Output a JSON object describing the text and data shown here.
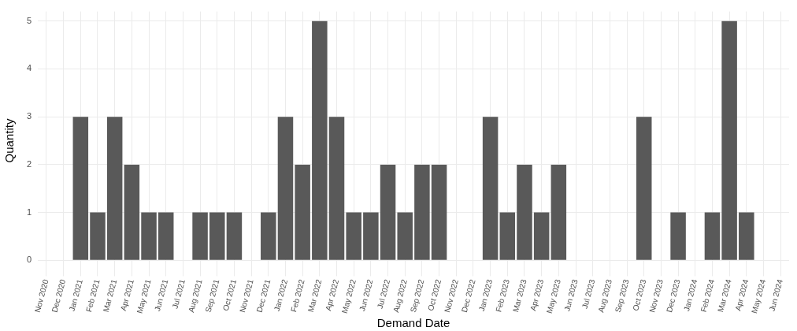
{
  "chart_data": {
    "type": "bar",
    "xlabel": "Demand Date",
    "ylabel": "Quantity",
    "categories": [
      "Nov 2020",
      "Dec 2020",
      "Jan 2021",
      "Feb 2021",
      "Mar 2021",
      "Apr 2021",
      "May 2021",
      "Jun 2021",
      "Jul 2021",
      "Aug 2021",
      "Sep 2021",
      "Oct 2021",
      "Nov 2021",
      "Dec 2021",
      "Jan 2022",
      "Feb 2022",
      "Mar 2022",
      "Apr 2022",
      "May 2022",
      "Jun 2022",
      "Jul 2022",
      "Aug 2022",
      "Sep 2022",
      "Oct 2022",
      "Nov 2022",
      "Dec 2022",
      "Jan 2023",
      "Feb 2023",
      "Mar 2023",
      "Apr 2023",
      "May 2023",
      "Jun 2023",
      "Jul 2023",
      "Aug 2023",
      "Sep 2023",
      "Oct 2023",
      "Nov 2023",
      "Dec 2023",
      "Jan 2024",
      "Feb 2024",
      "Mar 2024",
      "Apr 2024",
      "May 2024",
      "Jun 2024"
    ],
    "values": [
      null,
      null,
      3,
      1,
      3,
      2,
      1,
      1,
      null,
      1,
      1,
      1,
      null,
      1,
      3,
      2,
      5,
      3,
      1,
      1,
      2,
      1,
      2,
      2,
      null,
      null,
      3,
      1,
      2,
      1,
      2,
      null,
      null,
      null,
      null,
      3,
      null,
      1,
      null,
      1,
      5,
      1,
      null,
      null
    ],
    "color": "#595959",
    "ylim": [
      -0.2,
      5.2
    ],
    "yticks": [
      0,
      1,
      2,
      3,
      4,
      5
    ],
    "grid": true
  }
}
